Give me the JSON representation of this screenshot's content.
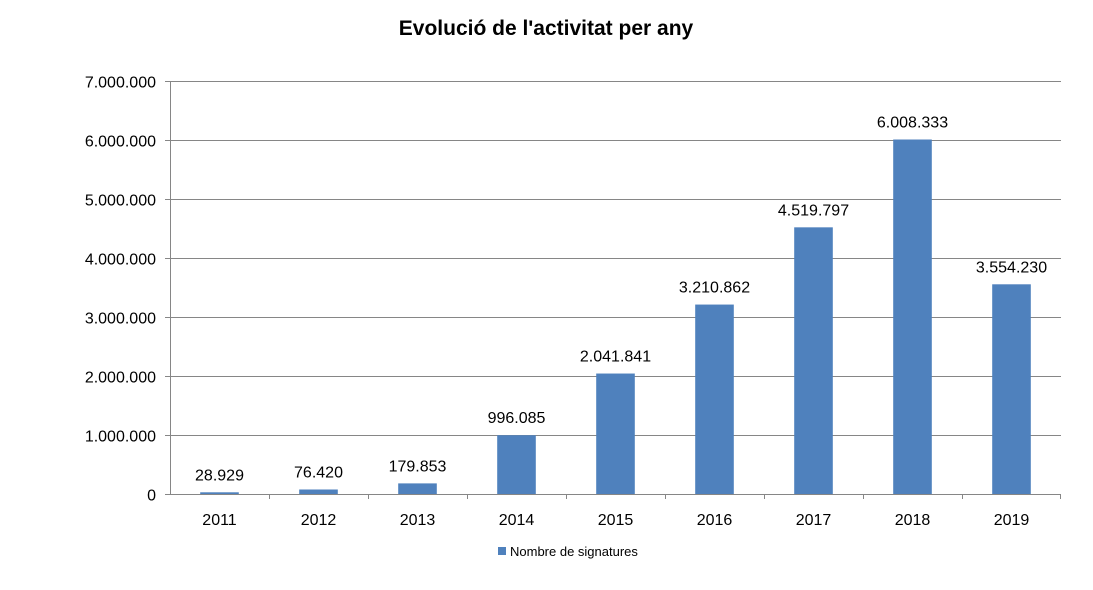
{
  "chart_data": {
    "type": "bar",
    "title": "Evolució de l'activitat per any",
    "categories": [
      "2011",
      "2012",
      "2013",
      "2014",
      "2015",
      "2016",
      "2017",
      "2018",
      "2019"
    ],
    "series": [
      {
        "name": "Nombre de signatures",
        "values": [
          28929,
          76420,
          179853,
          996085,
          2041841,
          3210862,
          4519797,
          6008333,
          3554230
        ],
        "labels": [
          "28.929",
          "76.420",
          "179.853",
          "996.085",
          "2.041.841",
          "3.210.862",
          "4.519.797",
          "6.008.333",
          "3.554.230"
        ],
        "color": "#4F81BD"
      }
    ],
    "ylim": [
      0,
      7000000
    ],
    "yticks": [
      0,
      1000000,
      2000000,
      3000000,
      4000000,
      5000000,
      6000000,
      7000000
    ],
    "ytick_labels": [
      "0",
      "1.000.000",
      "2.000.000",
      "3.000.000",
      "4.000.000",
      "5.000.000",
      "6.000.000",
      "7.000.000"
    ],
    "grid": true,
    "legend": "bottom"
  }
}
